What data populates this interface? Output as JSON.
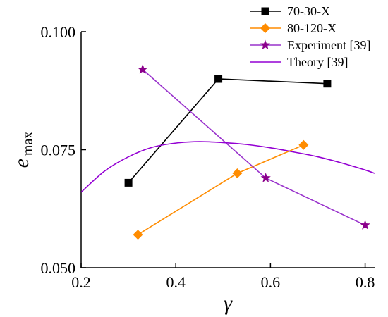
{
  "chart_data": {
    "type": "line",
    "xlabel": "γ",
    "ylabel": {
      "main": "e",
      "sub": "max"
    },
    "xlim": [
      0.2,
      0.82
    ],
    "ylim": [
      0.05,
      0.1
    ],
    "x_ticks": [
      0.2,
      0.4,
      0.6,
      0.8
    ],
    "x_tick_labels": [
      "0.2",
      "0.4",
      "0.6",
      "0.8"
    ],
    "y_ticks": [
      0.05,
      0.075,
      0.1
    ],
    "y_tick_labels": [
      "0.050",
      "0.075",
      "0.100"
    ],
    "grid": false,
    "legend_position": "top-right",
    "series": [
      {
        "name": "70-30-X",
        "color": "#000000",
        "marker": "square",
        "x": [
          0.3,
          0.49,
          0.72
        ],
        "y": [
          0.068,
          0.09,
          0.089
        ]
      },
      {
        "name": "80-120-X",
        "color": "#ff8c00",
        "marker": "diamond",
        "x": [
          0.32,
          0.53,
          0.67
        ],
        "y": [
          0.057,
          0.07,
          0.076
        ]
      },
      {
        "name": "Experiment [39]",
        "color": "#8b008b",
        "line_color": "#9932cc",
        "marker": "star",
        "x": [
          0.33,
          0.59,
          0.8
        ],
        "y": [
          0.092,
          0.069,
          0.059
        ]
      },
      {
        "name": "Theory [39]",
        "color": "#9400d3",
        "marker": "none",
        "x": [
          0.2,
          0.25,
          0.3,
          0.35,
          0.4,
          0.45,
          0.5,
          0.55,
          0.6,
          0.65,
          0.7,
          0.75,
          0.8,
          0.82
        ],
        "y": [
          0.066,
          0.0705,
          0.0735,
          0.0755,
          0.0764,
          0.0767,
          0.0765,
          0.0761,
          0.0754,
          0.0745,
          0.0735,
          0.0722,
          0.0707,
          0.07
        ]
      }
    ]
  }
}
